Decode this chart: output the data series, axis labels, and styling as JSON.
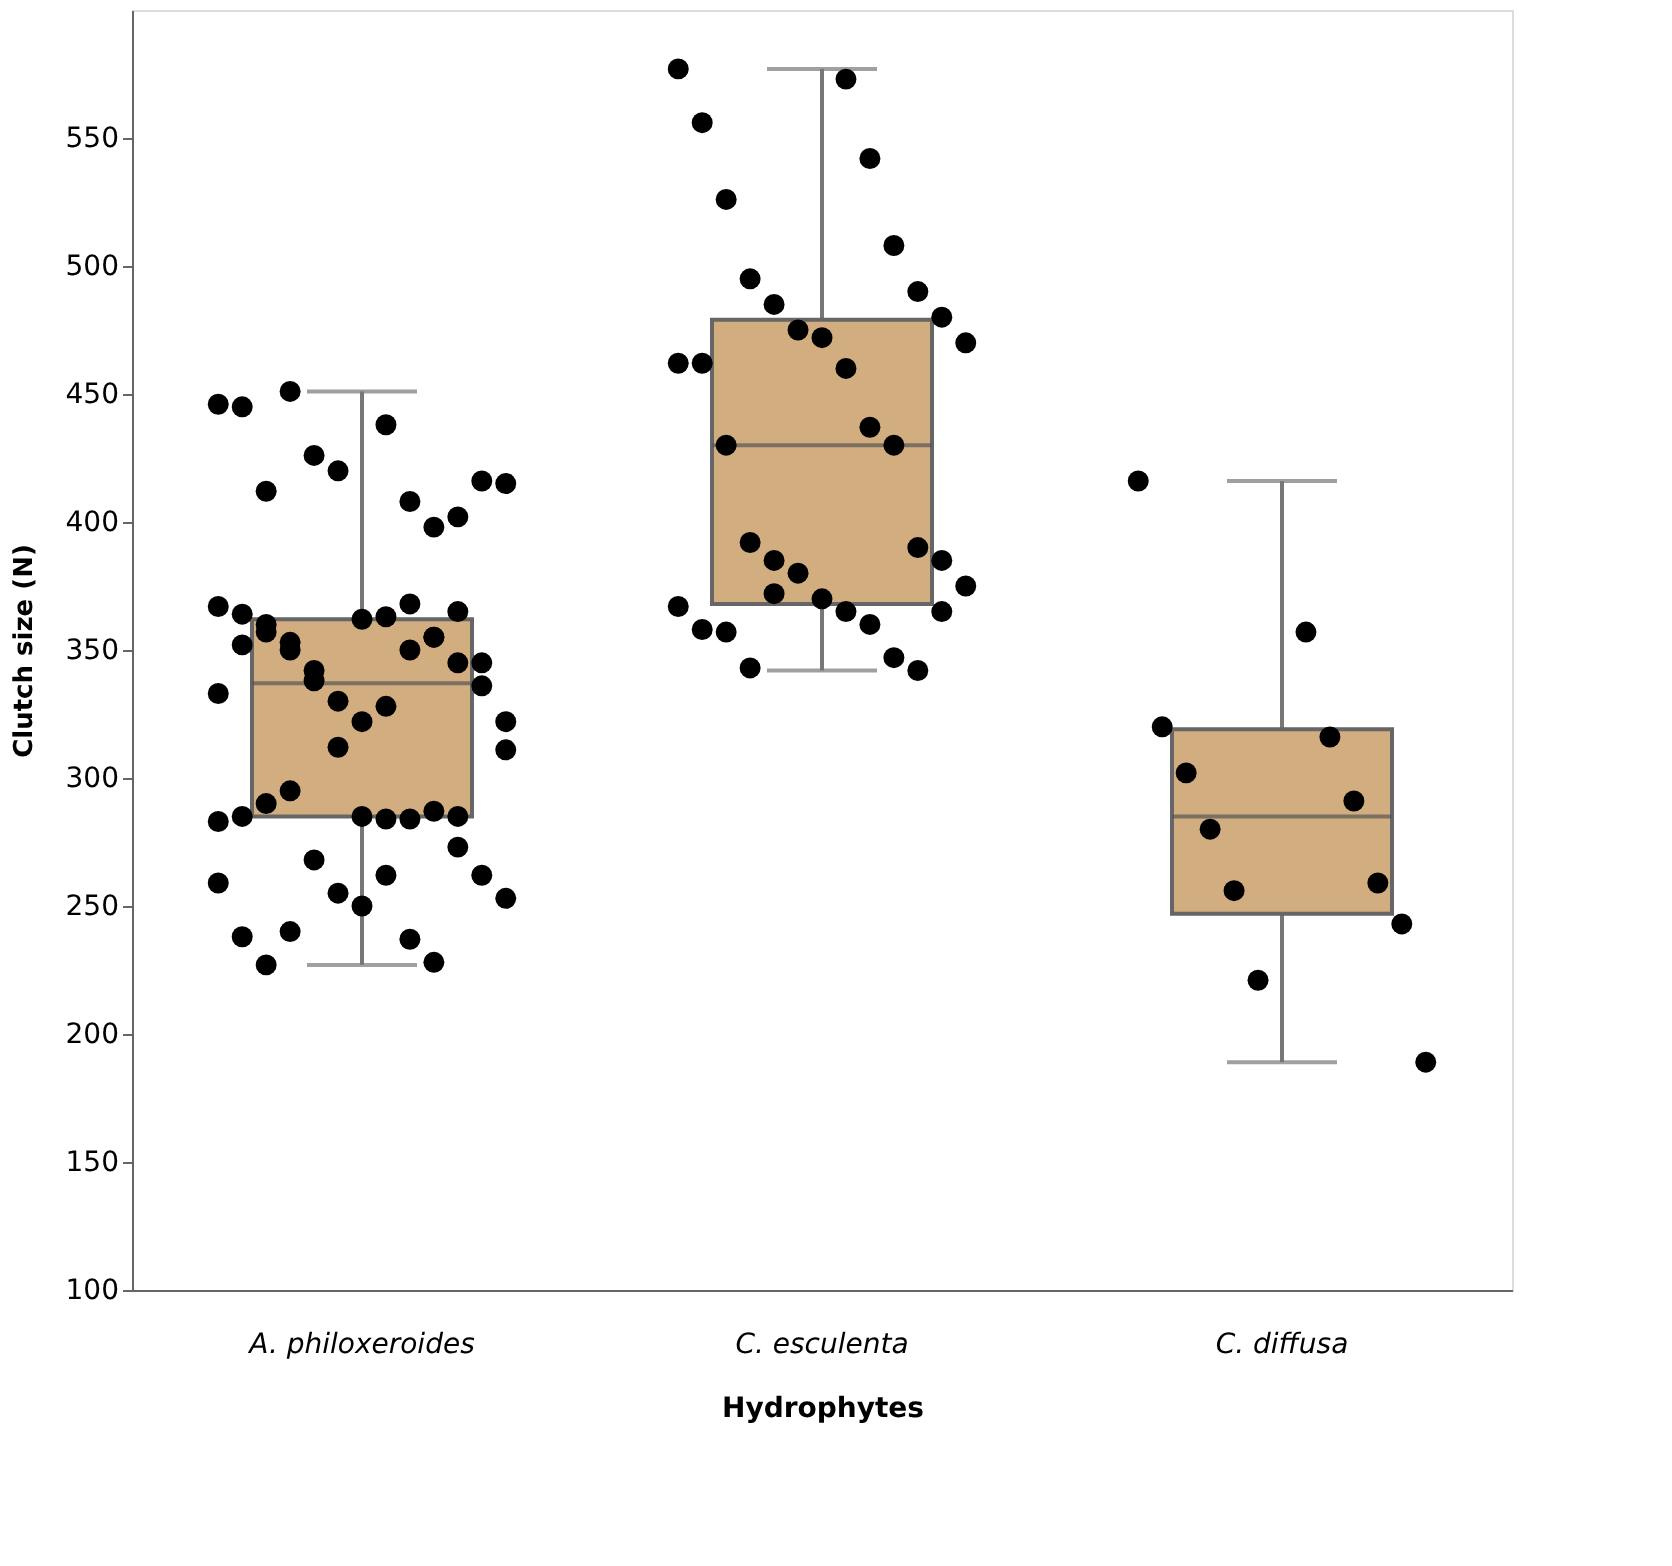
{
  "chart_data": {
    "type": "box",
    "xlabel": "Hydrophytes",
    "ylabel": "Clutch size (N)",
    "categories": [
      "A. philoxeroides",
      "C. esculenta",
      "C. diffusa"
    ],
    "ylim": [
      100,
      600
    ],
    "yticks": [
      100,
      150,
      200,
      250,
      300,
      350,
      400,
      450,
      500,
      550
    ],
    "grid": false,
    "series": [
      {
        "color": "#d2ad7f",
        "boxes": [
          {
            "low": 227,
            "q1": 285,
            "median": 337,
            "q3": 362,
            "high": 451
          },
          {
            "low": 342,
            "q1": 368,
            "median": 430,
            "q3": 479,
            "high": 577
          },
          {
            "low": 189,
            "q1": 247,
            "median": 285,
            "q3": 319,
            "high": 416
          }
        ]
      },
      {
        "type": "scatter",
        "color": "#000000",
        "marker": "circle",
        "x": [
          "A. philoxeroides",
          "A. philoxeroides",
          "A. philoxeroides",
          "A. philoxeroides",
          "A. philoxeroides",
          "A. philoxeroides",
          "A. philoxeroides",
          "A. philoxeroides",
          "A. philoxeroides",
          "A. philoxeroides",
          "A. philoxeroides",
          "A. philoxeroides",
          "A. philoxeroides",
          "A. philoxeroides",
          "A. philoxeroides",
          "A. philoxeroides",
          "A. philoxeroides",
          "A. philoxeroides",
          "A. philoxeroides",
          "A. philoxeroides",
          "A. philoxeroides",
          "A. philoxeroides",
          "A. philoxeroides",
          "A. philoxeroides",
          "A. philoxeroides",
          "A. philoxeroides",
          "A. philoxeroides",
          "A. philoxeroides",
          "A. philoxeroides",
          "A. philoxeroides",
          "A. philoxeroides",
          "A. philoxeroides",
          "A. philoxeroides",
          "A. philoxeroides",
          "A. philoxeroides",
          "A. philoxeroides",
          "A. philoxeroides",
          "A. philoxeroides",
          "A. philoxeroides",
          "A. philoxeroides",
          "A. philoxeroides",
          "A. philoxeroides",
          "A. philoxeroides",
          "A. philoxeroides",
          "A. philoxeroides",
          "A. philoxeroides",
          "A. philoxeroides",
          "A. philoxeroides",
          "A. philoxeroides",
          "A. philoxeroides",
          "A. philoxeroides",
          "A. philoxeroides",
          "A. philoxeroides",
          "A. philoxeroides",
          "A. philoxeroides",
          "A. philoxeroides",
          "A. philoxeroides",
          "A. philoxeroides",
          "A. philoxeroides",
          "A. philoxeroides",
          "C. esculenta",
          "C. esculenta",
          "C. esculenta",
          "C. esculenta",
          "C. esculenta",
          "C. esculenta",
          "C. esculenta",
          "C. esculenta",
          "C. esculenta",
          "C. esculenta",
          "C. esculenta",
          "C. esculenta",
          "C. esculenta",
          "C. esculenta",
          "C. esculenta",
          "C. esculenta",
          "C. esculenta",
          "C. esculenta",
          "C. esculenta",
          "C. esculenta",
          "C. esculenta",
          "C. esculenta",
          "C. esculenta",
          "C. esculenta",
          "C. esculenta",
          "C. esculenta",
          "C. esculenta",
          "C. esculenta",
          "C. esculenta",
          "C. esculenta",
          "C. esculenta",
          "C. esculenta",
          "C. esculenta",
          "C. esculenta",
          "C. esculenta",
          "C. esculenta",
          "C. diffusa",
          "C. diffusa",
          "C. diffusa",
          "C. diffusa",
          "C. diffusa",
          "C. diffusa",
          "C. diffusa",
          "C. diffusa",
          "C. diffusa",
          "C. diffusa",
          "C. diffusa",
          "C. diffusa"
        ],
        "values": [
          446,
          438,
          445,
          408,
          412,
          398,
          451,
          402,
          426,
          416,
          420,
          415,
          362,
          367,
          363,
          364,
          368,
          360,
          355,
          350,
          345,
          342,
          336,
          330,
          322,
          322,
          333,
          328,
          352,
          350,
          357,
          355,
          353,
          365,
          338,
          345,
          312,
          311,
          285,
          283,
          284,
          285,
          284,
          290,
          287,
          295,
          273,
          268,
          262,
          255,
          253,
          250,
          259,
          262,
          238,
          237,
          227,
          228,
          240,
          285,
          577,
          573,
          556,
          542,
          526,
          508,
          495,
          490,
          485,
          480,
          475,
          470,
          472,
          462,
          460,
          462,
          437,
          430,
          430,
          392,
          390,
          385,
          385,
          380,
          375,
          370,
          367,
          365,
          358,
          360,
          357,
          347,
          343,
          342,
          372,
          365,
          416,
          357,
          320,
          316,
          302,
          291,
          280,
          259,
          256,
          243,
          221,
          189
        ]
      }
    ]
  }
}
